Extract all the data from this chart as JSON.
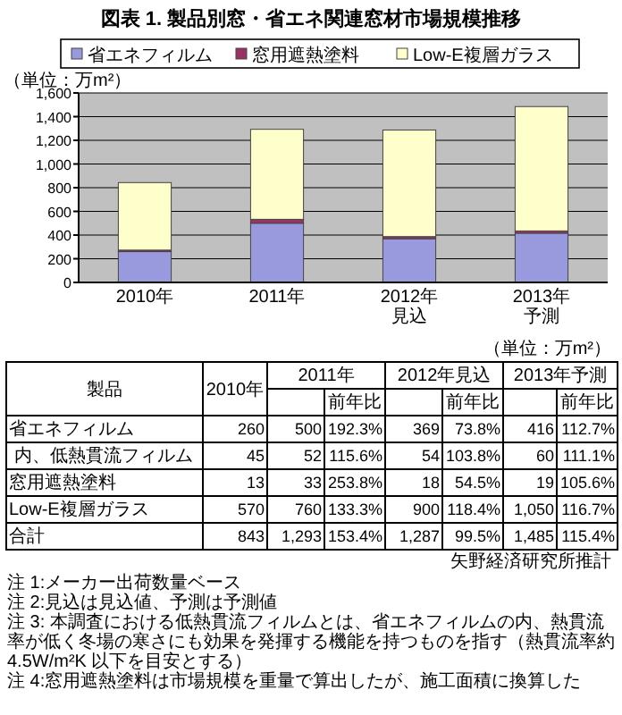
{
  "chart_data": {
    "type": "bar",
    "stacked": true,
    "title": "図表 1. 製品別窓・省エネ関連窓材市場規模推移",
    "ylabel": "（単位：万m²）",
    "categories": [
      "2010年",
      "2011年",
      "2012年見込",
      "2013年予測"
    ],
    "series": [
      {
        "name": "省エネフィルム",
        "color": "#9999dd",
        "values": [
          260,
          500,
          369,
          416
        ]
      },
      {
        "name": "窓用遮熱塗料",
        "color": "#993366",
        "values": [
          13,
          33,
          18,
          19
        ]
      },
      {
        "name": "Low-E複層ガラス",
        "color": "#ffffcc",
        "values": [
          570,
          760,
          900,
          1050
        ]
      }
    ],
    "ylim": [
      0,
      1600
    ],
    "yticks": [
      0,
      200,
      400,
      600,
      800,
      {
        "value": 1000,
        "label": "1,000"
      },
      {
        "value": 1200,
        "label": "1,200"
      },
      {
        "value": 1400,
        "label": "1,400"
      },
      {
        "value": 1600,
        "label": "1,600"
      }
    ],
    "grid": "y",
    "legend": "top",
    "annotations": [
      "（単位：万m²）",
      "製品",
      "前年比",
      "前年比",
      "前年比",
      "省エネフィルム",
      "260",
      "500",
      "192.3%",
      "369",
      "73.8%",
      "416",
      "112.7%",
      "内、低熱貫流フィルム",
      "45",
      "52",
      "115.6%",
      "54",
      "103.8%",
      "60",
      "111.1%",
      "窓用遮熱塗料",
      "13",
      "33",
      "253.8%",
      "18",
      "54.5%",
      "19",
      "105.6%",
      "Low-E複層ガラス",
      "570",
      "760",
      "133.3%",
      "900",
      "118.4%",
      "1,050",
      "116.7%",
      "合計",
      "843",
      "1,293",
      "153.4%",
      "1,287",
      "99.5%",
      "1,485",
      "115.4%",
      "矢野経済研究所推計",
      "注 1:メーカー出荷数量ベース",
      "注 2:見込は見込値、予測は予測値",
      "注 3: 本調査における低熱貫流フィルムとは、省エネフィルムの内、熱貫流率が低く冬場の寒さにも効果を発揮する機能を持つものを指す（熱貫流率約 4.5W/m²K 以下を目安とする）",
      "注 4:窓用遮熱塗料は市場規模を重量で算出したが、施工面積に換算した"
    ]
  }
}
